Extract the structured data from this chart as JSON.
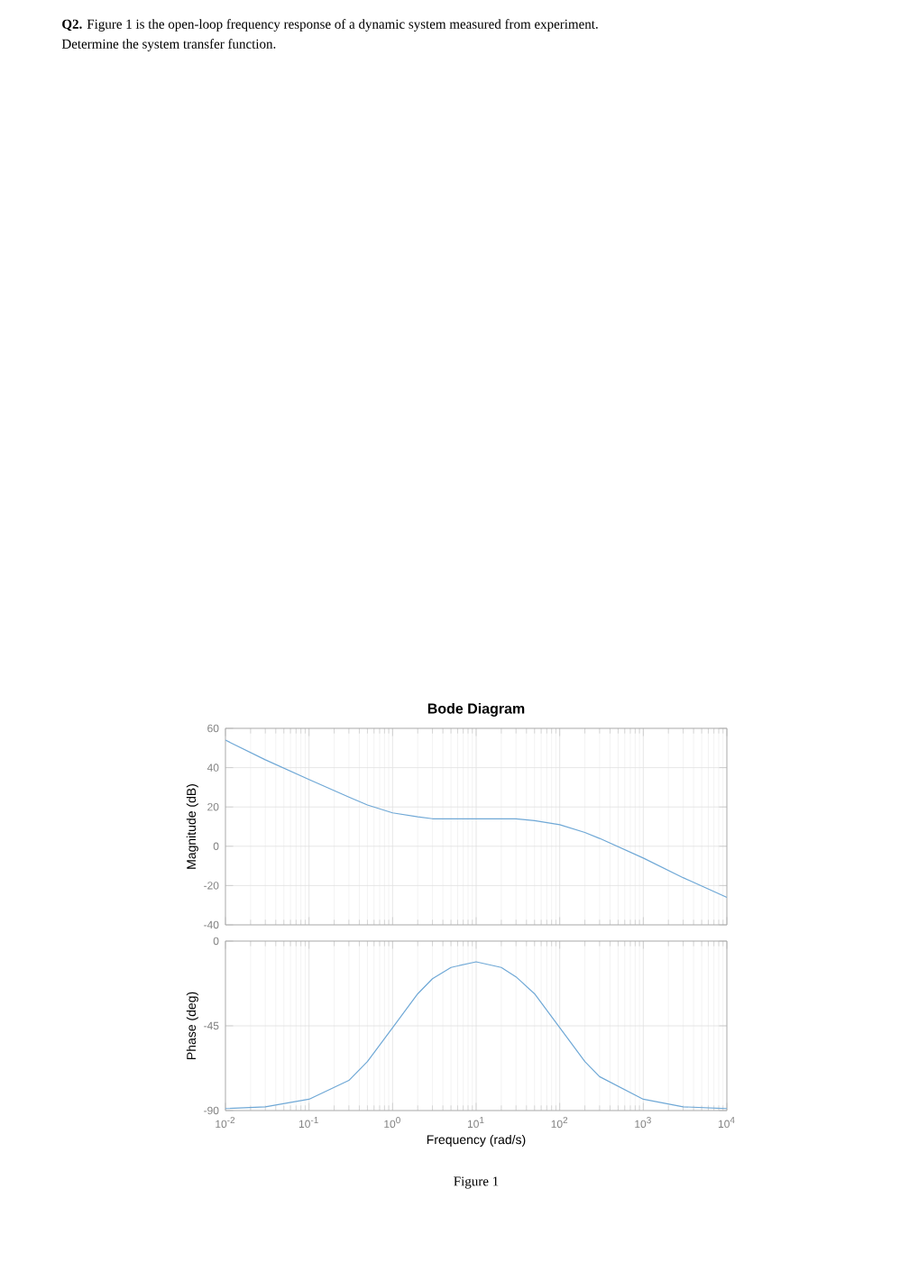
{
  "chart_data": [
    {
      "type": "line",
      "title": "Bode Diagram",
      "ylabel": "Magnitude (dB)",
      "annotations": [
        "**Q2.** Figure 1 is the open-loop frequency response of a dynamic system measured from experiment.",
        "Determine the system transfer function."
      ],
      "x": [
        0.01,
        0.03,
        0.1,
        0.3,
        0.5,
        1,
        2,
        3,
        10,
        30,
        50,
        100,
        200,
        300,
        1000,
        3000,
        10000
      ],
      "series": [
        {
          "color": "#6fa8d6",
          "values": [
            54,
            44,
            34,
            25,
            21,
            17,
            15,
            14,
            14,
            14,
            13,
            11,
            7,
            4,
            -6,
            -16,
            -26
          ]
        }
      ],
      "log": "x",
      "grid": true,
      "tick_labels": "y",
      "xlim": [
        0.01,
        10000
      ],
      "ylim": [
        -40,
        60
      ],
      "xticks": [
        {
          "value": 0.01,
          "label": null
        },
        {
          "value": 0.1,
          "label": null
        },
        {
          "value": 1,
          "label": null
        },
        {
          "value": 10,
          "label": null
        },
        {
          "value": 100,
          "label": null
        },
        {
          "value": 1000,
          "label": null
        },
        {
          "value": 10000,
          "label": null
        }
      ],
      "yticks": [
        -40,
        -20,
        0,
        20,
        40,
        60
      ]
    },
    {
      "type": "line",
      "ylabel": "Phase (deg)",
      "xlabel": "Frequency  (rad/s)",
      "annotations": [
        "Figure 1"
      ],
      "x": [
        0.01,
        0.03,
        0.1,
        0.3,
        0.5,
        1,
        2,
        3,
        5,
        10,
        20,
        30,
        50,
        100,
        200,
        300,
        1000,
        3000,
        10000
      ],
      "series": [
        {
          "color": "#6fa8d6",
          "values": [
            -89,
            -88,
            -84,
            -74,
            -64,
            -46,
            -28,
            -20,
            -14,
            -11,
            -14,
            -19,
            -28,
            -46,
            -64,
            -72,
            -84,
            -88,
            -89
          ]
        }
      ],
      "log": "x",
      "grid": true,
      "xlim": [
        0.01,
        10000
      ],
      "ylim": [
        -90,
        0
      ],
      "xticks": [
        {
          "value": 0.01,
          "label": "10$^{-2}$"
        },
        {
          "value": 0.1,
          "label": "10$^{-1}$"
        },
        {
          "value": 1,
          "label": "10$^{0}$"
        },
        {
          "value": 10,
          "label": "10$^{1}$"
        },
        {
          "value": 100,
          "label": "10$^{2}$"
        },
        {
          "value": 1000,
          "label": "10$^{3}$"
        },
        {
          "value": 10000,
          "label": "10$^{4}$"
        }
      ],
      "yticks": [
        -90,
        -45,
        0
      ]
    }
  ]
}
